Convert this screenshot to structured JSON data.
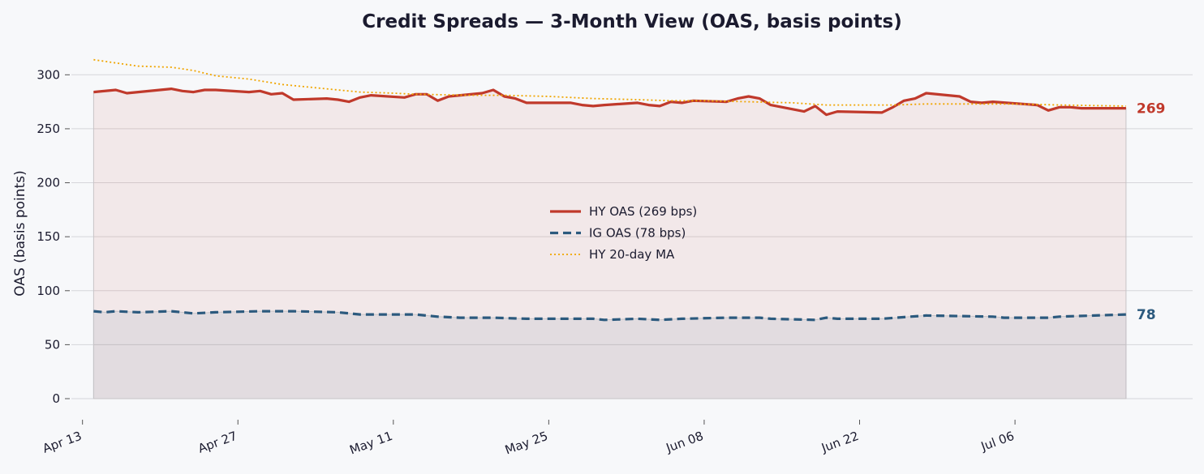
{
  "chart_data": {
    "type": "line",
    "title": "Credit Spreads — 3-Month View (OAS, basis points)",
    "xlabel": "",
    "ylabel": "OAS (basis points)",
    "ylim": [
      -15,
      328
    ],
    "yticks": [
      0,
      50,
      100,
      150,
      200,
      250,
      300
    ],
    "xlim": [
      "2025-04-12",
      "2025-07-22"
    ],
    "xticks": [
      "2025-04-13",
      "2025-04-27",
      "2025-05-11",
      "2025-05-25",
      "2025-06-08",
      "2025-06-22",
      "2025-07-06"
    ],
    "xtick_labels": [
      "Apr 13",
      "Apr 27",
      "May 11",
      "May 25",
      "Jun 08",
      "Jun 22",
      "Jul 06"
    ],
    "grid": "horizontal",
    "legend_position": "center",
    "series": [
      {
        "name": "HY OAS  (269 bps)",
        "color": "#c0392b",
        "style": "solid",
        "fill": true,
        "end_label": "269",
        "points": [
          [
            "2025-04-14",
            284
          ],
          [
            "2025-04-16",
            286
          ],
          [
            "2025-04-17",
            283
          ],
          [
            "2025-04-21",
            287
          ],
          [
            "2025-04-22",
            285
          ],
          [
            "2025-04-23",
            284
          ],
          [
            "2025-04-24",
            286
          ],
          [
            "2025-04-25",
            286
          ],
          [
            "2025-04-28",
            284
          ],
          [
            "2025-04-29",
            285
          ],
          [
            "2025-04-30",
            282
          ],
          [
            "2025-05-01",
            283
          ],
          [
            "2025-05-02",
            277
          ],
          [
            "2025-05-05",
            278
          ],
          [
            "2025-05-06",
            277
          ],
          [
            "2025-05-07",
            275
          ],
          [
            "2025-05-08",
            279
          ],
          [
            "2025-05-09",
            281
          ],
          [
            "2025-05-12",
            279
          ],
          [
            "2025-05-13",
            282
          ],
          [
            "2025-05-14",
            282
          ],
          [
            "2025-05-15",
            276
          ],
          [
            "2025-05-16",
            280
          ],
          [
            "2025-05-19",
            283
          ],
          [
            "2025-05-20",
            286
          ],
          [
            "2025-05-21",
            280
          ],
          [
            "2025-05-22",
            278
          ],
          [
            "2025-05-23",
            274
          ],
          [
            "2025-05-27",
            274
          ],
          [
            "2025-05-28",
            272
          ],
          [
            "2025-05-29",
            271
          ],
          [
            "2025-05-30",
            272
          ],
          [
            "2025-06-02",
            274
          ],
          [
            "2025-06-03",
            272
          ],
          [
            "2025-06-04",
            271
          ],
          [
            "2025-06-05",
            275
          ],
          [
            "2025-06-06",
            274
          ],
          [
            "2025-06-07",
            276
          ],
          [
            "2025-06-10",
            275
          ],
          [
            "2025-06-11",
            278
          ],
          [
            "2025-06-12",
            280
          ],
          [
            "2025-06-13",
            278
          ],
          [
            "2025-06-14",
            272
          ],
          [
            "2025-06-17",
            266
          ],
          [
            "2025-06-18",
            271
          ],
          [
            "2025-06-19",
            263
          ],
          [
            "2025-06-20",
            266
          ],
          [
            "2025-06-24",
            265
          ],
          [
            "2025-06-25",
            270
          ],
          [
            "2025-06-26",
            276
          ],
          [
            "2025-06-27",
            278
          ],
          [
            "2025-06-28",
            283
          ],
          [
            "2025-07-01",
            280
          ],
          [
            "2025-07-02",
            275
          ],
          [
            "2025-07-03",
            274
          ],
          [
            "2025-07-04",
            275
          ],
          [
            "2025-07-08",
            272
          ],
          [
            "2025-07-09",
            267
          ],
          [
            "2025-07-10",
            270
          ],
          [
            "2025-07-11",
            270
          ],
          [
            "2025-07-12",
            269
          ],
          [
            "2025-07-15",
            269
          ],
          [
            "2025-07-16",
            269
          ]
        ]
      },
      {
        "name": "IG OAS  (78 bps)",
        "color": "#2c5a7e",
        "style": "dashed",
        "fill": true,
        "end_label": "78",
        "points": [
          [
            "2025-04-14",
            81
          ],
          [
            "2025-04-15",
            80
          ],
          [
            "2025-04-16",
            81
          ],
          [
            "2025-04-18",
            80
          ],
          [
            "2025-04-21",
            81
          ],
          [
            "2025-04-23",
            79
          ],
          [
            "2025-04-25",
            80
          ],
          [
            "2025-04-29",
            81
          ],
          [
            "2025-05-02",
            81
          ],
          [
            "2025-05-06",
            80
          ],
          [
            "2025-05-08",
            78
          ],
          [
            "2025-05-13",
            78
          ],
          [
            "2025-05-15",
            76
          ],
          [
            "2025-05-17",
            75
          ],
          [
            "2025-05-20",
            75
          ],
          [
            "2025-05-23",
            74
          ],
          [
            "2025-05-27",
            74
          ],
          [
            "2025-05-29",
            74
          ],
          [
            "2025-05-30",
            73
          ],
          [
            "2025-06-02",
            74
          ],
          [
            "2025-06-04",
            73
          ],
          [
            "2025-06-06",
            74
          ],
          [
            "2025-06-10",
            75
          ],
          [
            "2025-06-13",
            75
          ],
          [
            "2025-06-14",
            74
          ],
          [
            "2025-06-18",
            73
          ],
          [
            "2025-06-19",
            75
          ],
          [
            "2025-06-20",
            74
          ],
          [
            "2025-06-24",
            74
          ],
          [
            "2025-06-28",
            77
          ],
          [
            "2025-07-04",
            76
          ],
          [
            "2025-07-05",
            75
          ],
          [
            "2025-07-09",
            75
          ],
          [
            "2025-07-10",
            76
          ],
          [
            "2025-07-16",
            78
          ]
        ]
      },
      {
        "name": "HY 20-day MA",
        "color": "#f0a500",
        "style": "dotted",
        "fill": false,
        "points": [
          [
            "2025-04-14",
            314
          ],
          [
            "2025-04-16",
            311
          ],
          [
            "2025-04-18",
            308
          ],
          [
            "2025-04-21",
            307
          ],
          [
            "2025-04-23",
            304
          ],
          [
            "2025-04-25",
            299
          ],
          [
            "2025-04-28",
            296
          ],
          [
            "2025-05-01",
            291
          ],
          [
            "2025-05-04",
            288
          ],
          [
            "2025-05-06",
            286
          ],
          [
            "2025-05-08",
            284
          ],
          [
            "2025-05-11",
            283
          ],
          [
            "2025-05-13",
            282
          ],
          [
            "2025-05-18",
            281
          ],
          [
            "2025-05-21",
            281
          ],
          [
            "2025-05-25",
            280
          ],
          [
            "2025-05-29",
            278
          ],
          [
            "2025-06-02",
            277
          ],
          [
            "2025-06-05",
            276
          ],
          [
            "2025-06-08",
            276
          ],
          [
            "2025-06-12",
            275
          ],
          [
            "2025-06-16",
            274
          ],
          [
            "2025-06-19",
            272
          ],
          [
            "2025-06-22",
            272
          ],
          [
            "2025-06-25",
            272
          ],
          [
            "2025-06-28",
            273
          ],
          [
            "2025-07-02",
            273
          ],
          [
            "2025-07-06",
            273
          ],
          [
            "2025-07-10",
            272
          ],
          [
            "2025-07-16",
            271
          ]
        ]
      }
    ]
  }
}
